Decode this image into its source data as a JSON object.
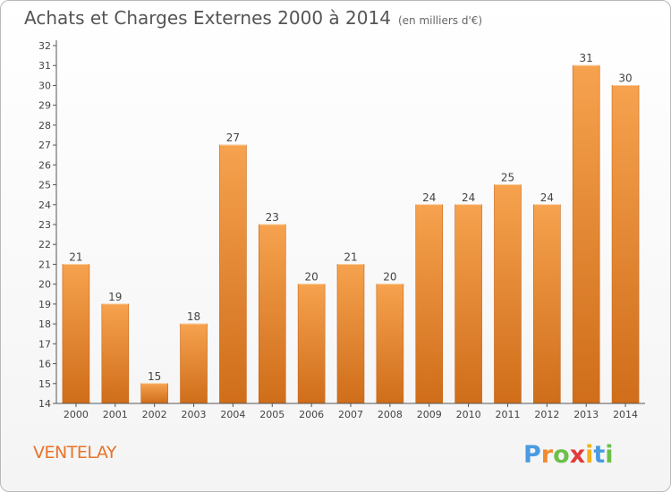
{
  "header": {
    "title": "Achats et Charges Externes 2000 à 2014",
    "unit": "(en milliers d'€)"
  },
  "footer": {
    "place": "VENTELAY",
    "logo": "Proxiti"
  },
  "colors": {
    "bar_light": "#f6a24e",
    "bar_dark": "#cf6d1a",
    "place_text": "#e8732a"
  },
  "chart_data": {
    "type": "bar",
    "title": "Achats et Charges Externes 2000 à 2014",
    "subtitle": "(en milliers d'€)",
    "xlabel": "",
    "ylabel": "",
    "categories": [
      "2000",
      "2001",
      "2002",
      "2003",
      "2004",
      "2005",
      "2006",
      "2007",
      "2008",
      "2009",
      "2010",
      "2011",
      "2012",
      "2013",
      "2014"
    ],
    "values": [
      21,
      19,
      15,
      18,
      27,
      23,
      20,
      21,
      20,
      24,
      24,
      25,
      24,
      31,
      30
    ],
    "ylim": [
      14,
      32
    ],
    "yticks": [
      14,
      15,
      16,
      17,
      18,
      19,
      20,
      21,
      22,
      23,
      24,
      25,
      26,
      27,
      28,
      29,
      30,
      31,
      32
    ],
    "grid": false,
    "data_labels": true
  }
}
